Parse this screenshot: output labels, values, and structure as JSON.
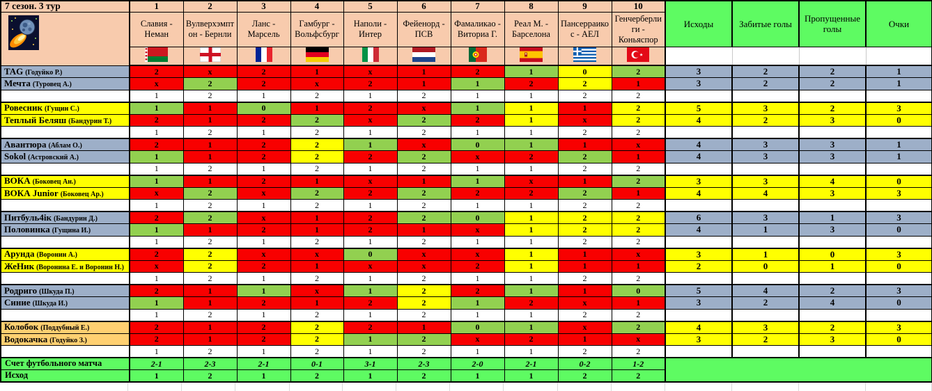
{
  "title": "7 сезон. 3 тур",
  "columns": [
    {
      "num": "1",
      "match": "Славия - Неман",
      "flag": "belarus"
    },
    {
      "num": "2",
      "match": "Вулверхэмптон - Бернли",
      "flag": "england"
    },
    {
      "num": "3",
      "match": "Ланс - Марсель",
      "flag": "france"
    },
    {
      "num": "4",
      "match": "Гамбург - Вольфсбург",
      "flag": "germany"
    },
    {
      "num": "5",
      "match": "Наполи - Интер",
      "flag": "italy"
    },
    {
      "num": "6",
      "match": "Фейенорд - ПСВ",
      "flag": "netherlands"
    },
    {
      "num": "7",
      "match": "Фамаликао - Виториа Г.",
      "flag": "portugal"
    },
    {
      "num": "8",
      "match": "Реал М. - Барселона",
      "flag": "spain"
    },
    {
      "num": "9",
      "match": "Пансерраикос - АЕЛ",
      "flag": "greece"
    },
    {
      "num": "10",
      "match": "Генчерберлиги - Коньяспор",
      "flag": "turkey"
    }
  ],
  "right_columns": [
    "Исходы",
    "Забитые голы",
    "Пропущенные голы",
    "Очки"
  ],
  "outcome_row": [
    "1",
    "2",
    "1",
    "2",
    "1",
    "2",
    "1",
    "1",
    "2",
    "2"
  ],
  "groups": [
    {
      "name_bg": "blue",
      "stat_bg": "blue",
      "players": [
        {
          "name": "TAG",
          "sub": "(Годуйко Р.)",
          "stats": [
            "3",
            "2",
            "2",
            "1"
          ],
          "cells": [
            [
              "2",
              "red"
            ],
            [
              "х",
              "red"
            ],
            [
              "2",
              "red"
            ],
            [
              "1",
              "red"
            ],
            [
              "х",
              "red"
            ],
            [
              "1",
              "red"
            ],
            [
              "2",
              "red"
            ],
            [
              "1",
              "green"
            ],
            [
              "0",
              "yellow"
            ],
            [
              "2",
              "green"
            ]
          ]
        },
        {
          "name": "Мечта",
          "sub": "(Туровец А.)",
          "stats": [
            "3",
            "2",
            "2",
            "1"
          ],
          "cells": [
            [
              "х",
              "red"
            ],
            [
              "2",
              "green"
            ],
            [
              "2",
              "red"
            ],
            [
              "х",
              "red"
            ],
            [
              "2",
              "red"
            ],
            [
              "1",
              "red"
            ],
            [
              "1",
              "green"
            ],
            [
              "2",
              "red"
            ],
            [
              "2",
              "yellow"
            ],
            [
              "1",
              "red"
            ]
          ]
        }
      ]
    },
    {
      "name_bg": "yellow",
      "stat_bg": "yellow",
      "players": [
        {
          "name": "Ровесник",
          "sub": "(Гущин С.)",
          "stats": [
            "5",
            "3",
            "2",
            "3"
          ],
          "cells": [
            [
              "1",
              "green"
            ],
            [
              "1",
              "red"
            ],
            [
              "0",
              "green"
            ],
            [
              "1",
              "red"
            ],
            [
              "2",
              "red"
            ],
            [
              "х",
              "red"
            ],
            [
              "1",
              "green"
            ],
            [
              "1",
              "yellow"
            ],
            [
              "1",
              "red"
            ],
            [
              "2",
              "yellow"
            ]
          ]
        },
        {
          "name": "Теплый Беляш",
          "sub": "(Бандурин Т.)",
          "stats": [
            "4",
            "2",
            "3",
            "0"
          ],
          "cells": [
            [
              "2",
              "red"
            ],
            [
              "1",
              "red"
            ],
            [
              "2",
              "red"
            ],
            [
              "2",
              "green"
            ],
            [
              "х",
              "red"
            ],
            [
              "2",
              "green"
            ],
            [
              "2",
              "red"
            ],
            [
              "1",
              "yellow"
            ],
            [
              "х",
              "red"
            ],
            [
              "2",
              "yellow"
            ]
          ]
        }
      ]
    },
    {
      "name_bg": "blue",
      "stat_bg": "blue",
      "players": [
        {
          "name": "Авантюра",
          "sub": "(Аблам О.)",
          "stats": [
            "4",
            "3",
            "3",
            "1"
          ],
          "cells": [
            [
              "2",
              "red"
            ],
            [
              "1",
              "red"
            ],
            [
              "2",
              "red"
            ],
            [
              "2",
              "yellow"
            ],
            [
              "1",
              "green"
            ],
            [
              "х",
              "red"
            ],
            [
              "0",
              "green"
            ],
            [
              "1",
              "green"
            ],
            [
              "1",
              "red"
            ],
            [
              "х",
              "red"
            ]
          ]
        },
        {
          "name": "Sokol",
          "sub": "(Астровский А.)",
          "stats": [
            "4",
            "3",
            "3",
            "1"
          ],
          "cells": [
            [
              "1",
              "green"
            ],
            [
              "1",
              "red"
            ],
            [
              "2",
              "red"
            ],
            [
              "2",
              "yellow"
            ],
            [
              "2",
              "red"
            ],
            [
              "2",
              "green"
            ],
            [
              "х",
              "red"
            ],
            [
              "2",
              "red"
            ],
            [
              "2",
              "green"
            ],
            [
              "1",
              "red"
            ]
          ]
        }
      ]
    },
    {
      "name_bg": "yellow",
      "stat_bg": "yellow",
      "players": [
        {
          "name": "ВОКА",
          "sub": "(Боковец Ан.)",
          "stats": [
            "3",
            "3",
            "4",
            "0"
          ],
          "cells": [
            [
              "1",
              "green"
            ],
            [
              "1",
              "red"
            ],
            [
              "2",
              "red"
            ],
            [
              "1",
              "red"
            ],
            [
              "х",
              "red"
            ],
            [
              "1",
              "red"
            ],
            [
              "1",
              "green"
            ],
            [
              "х",
              "red"
            ],
            [
              "1",
              "red"
            ],
            [
              "2",
              "green"
            ]
          ]
        },
        {
          "name": "ВОКА Junior",
          "sub": "(Боковец Ар.)",
          "stats": [
            "4",
            "4",
            "3",
            "3"
          ],
          "cells": [
            [
              "х",
              "red"
            ],
            [
              "2",
              "green"
            ],
            [
              "х",
              "red"
            ],
            [
              "2",
              "green"
            ],
            [
              "2",
              "red"
            ],
            [
              "2",
              "green"
            ],
            [
              "2",
              "red"
            ],
            [
              "2",
              "red"
            ],
            [
              "2",
              "green"
            ],
            [
              "1",
              "red"
            ]
          ]
        }
      ]
    },
    {
      "name_bg": "blue",
      "stat_bg": "blue",
      "players": [
        {
          "name": "Питбуль4ік",
          "sub": "(Бандурин Д.)",
          "stats": [
            "6",
            "3",
            "1",
            "3"
          ],
          "cells": [
            [
              "2",
              "red"
            ],
            [
              "2",
              "green"
            ],
            [
              "х",
              "red"
            ],
            [
              "1",
              "red"
            ],
            [
              "2",
              "red"
            ],
            [
              "2",
              "green"
            ],
            [
              "0",
              "green"
            ],
            [
              "1",
              "yellow"
            ],
            [
              "2",
              "yellow"
            ],
            [
              "2",
              "yellow"
            ]
          ]
        },
        {
          "name": "Половинка",
          "sub": "(Гущина И.)",
          "stats": [
            "4",
            "1",
            "3",
            "0"
          ],
          "cells": [
            [
              "1",
              "green"
            ],
            [
              "1",
              "red"
            ],
            [
              "2",
              "red"
            ],
            [
              "1",
              "red"
            ],
            [
              "2",
              "red"
            ],
            [
              "1",
              "red"
            ],
            [
              "х",
              "red"
            ],
            [
              "1",
              "yellow"
            ],
            [
              "2",
              "yellow"
            ],
            [
              "2",
              "yellow"
            ]
          ]
        }
      ]
    },
    {
      "name_bg": "yellow",
      "stat_bg": "yellow",
      "players": [
        {
          "name": "Арунда",
          "sub": "(Воронин А.)",
          "stats": [
            "3",
            "1",
            "0",
            "3"
          ],
          "cells": [
            [
              "2",
              "red"
            ],
            [
              "2",
              "yellow"
            ],
            [
              "х",
              "red"
            ],
            [
              "х",
              "red"
            ],
            [
              "0",
              "green"
            ],
            [
              "х",
              "red"
            ],
            [
              "х",
              "red"
            ],
            [
              "1",
              "yellow"
            ],
            [
              "1",
              "red"
            ],
            [
              "х",
              "red"
            ]
          ]
        },
        {
          "name": "ЖеНик",
          "sub": "(Воронина Е. и Воронин Н.)",
          "stats": [
            "2",
            "0",
            "1",
            "0"
          ],
          "cells": [
            [
              "х",
              "red"
            ],
            [
              "2",
              "yellow"
            ],
            [
              "2",
              "red"
            ],
            [
              "1",
              "red"
            ],
            [
              "х",
              "red"
            ],
            [
              "х",
              "red"
            ],
            [
              "2",
              "red"
            ],
            [
              "1",
              "yellow"
            ],
            [
              "1",
              "red"
            ],
            [
              "1",
              "red"
            ]
          ]
        }
      ]
    },
    {
      "name_bg": "blue",
      "stat_bg": "blue",
      "players": [
        {
          "name": "Родриго",
          "sub": "(Шкуда П.)",
          "stats": [
            "5",
            "4",
            "2",
            "3"
          ],
          "cells": [
            [
              "2",
              "red"
            ],
            [
              "1",
              "red"
            ],
            [
              "1",
              "green"
            ],
            [
              "х",
              "red"
            ],
            [
              "1",
              "green"
            ],
            [
              "2",
              "yellow"
            ],
            [
              "2",
              "red"
            ],
            [
              "1",
              "green"
            ],
            [
              "1",
              "red"
            ],
            [
              "0",
              "green"
            ]
          ]
        },
        {
          "name": "Синие",
          "sub": "(Шкуда И.)",
          "stats": [
            "3",
            "2",
            "4",
            "0"
          ],
          "cells": [
            [
              "1",
              "green"
            ],
            [
              "1",
              "red"
            ],
            [
              "2",
              "red"
            ],
            [
              "1",
              "red"
            ],
            [
              "2",
              "red"
            ],
            [
              "2",
              "yellow"
            ],
            [
              "1",
              "green"
            ],
            [
              "2",
              "red"
            ],
            [
              "х",
              "red"
            ],
            [
              "1",
              "red"
            ]
          ]
        }
      ]
    },
    {
      "name_bg": "orange",
      "stat_bg": "yellow",
      "players": [
        {
          "name": "Колобок",
          "sub": "(Поддубный Е.)",
          "stats": [
            "4",
            "3",
            "2",
            "3"
          ],
          "cells": [
            [
              "2",
              "red"
            ],
            [
              "1",
              "red"
            ],
            [
              "2",
              "red"
            ],
            [
              "2",
              "yellow"
            ],
            [
              "2",
              "red"
            ],
            [
              "1",
              "red"
            ],
            [
              "0",
              "green"
            ],
            [
              "1",
              "green"
            ],
            [
              "х",
              "red"
            ],
            [
              "2",
              "green"
            ]
          ]
        },
        {
          "name": "Водокачка",
          "sub": "(Годуйко З.)",
          "stats": [
            "3",
            "2",
            "3",
            "0"
          ],
          "cells": [
            [
              "2",
              "red"
            ],
            [
              "1",
              "red"
            ],
            [
              "2",
              "red"
            ],
            [
              "2",
              "yellow"
            ],
            [
              "1",
              "green"
            ],
            [
              "2",
              "green"
            ],
            [
              "х",
              "red"
            ],
            [
              "2",
              "red"
            ],
            [
              "1",
              "red"
            ],
            [
              "х",
              "red"
            ]
          ]
        }
      ]
    }
  ],
  "footer": {
    "score_label": "Счет футбольного матча",
    "scores": [
      "2-1",
      "2-3",
      "2-1",
      "0-1",
      "3-1",
      "2-3",
      "2-0",
      "2-1",
      "0-2",
      "1-2"
    ],
    "outcome_label": "Исход",
    "outcomes": [
      "1",
      "2",
      "1",
      "2",
      "1",
      "2",
      "1",
      "1",
      "2",
      "2"
    ]
  },
  "colors": {
    "header_peach": "#F8CBAD",
    "header_green": "#5EFB62",
    "cell_correct_green": "#92D050",
    "cell_wrong_red": "#F80000",
    "cell_pending_yellow": "#FFFF00",
    "name_blue": "#9DAFC8",
    "name_orange": "#FFD071"
  }
}
